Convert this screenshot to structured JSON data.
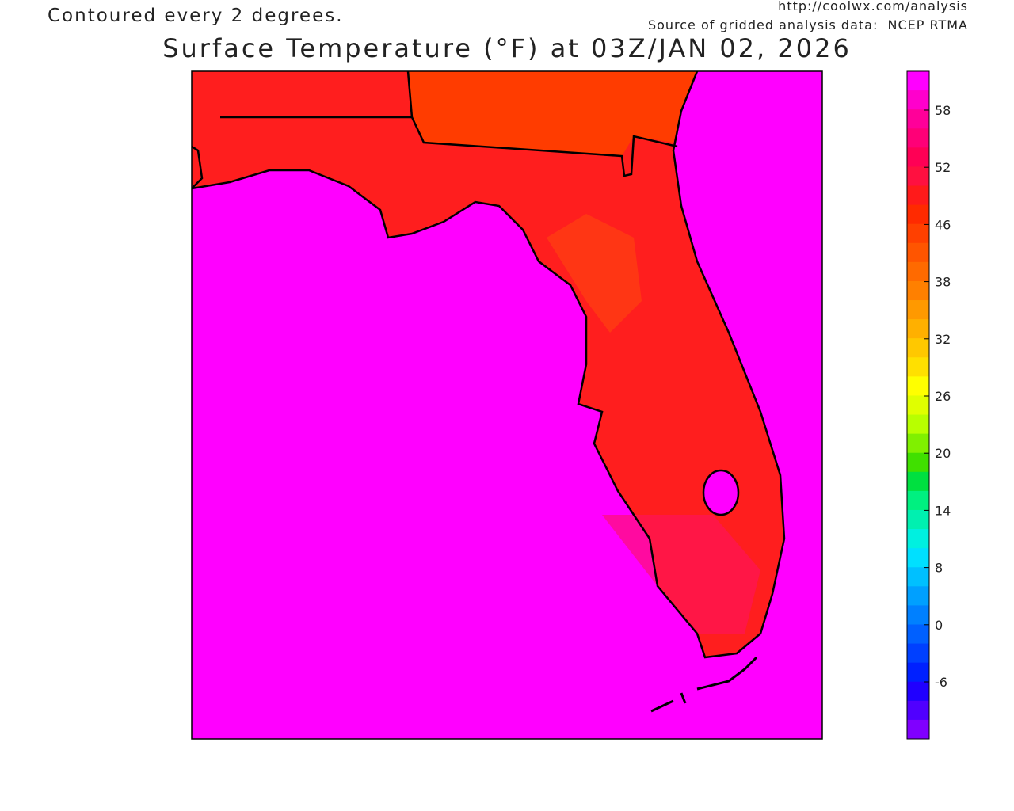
{
  "header": {
    "note": "Contoured every 2 degrees.",
    "url": "http://coolwx.com/analysis",
    "source": "Source of gridded analysis data:  NCEP RTMA",
    "title": "Surface Temperature (°F) at 03Z/JAN 02, 2026"
  },
  "colorbar": {
    "labels": [
      "58",
      "52",
      "46",
      "38",
      "32",
      "26",
      "20",
      "14",
      "8",
      "0",
      "-6"
    ]
  }
}
